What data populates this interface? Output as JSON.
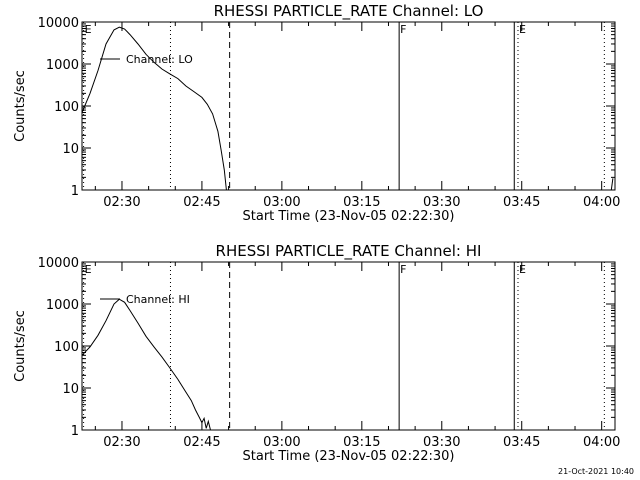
{
  "chart_data": [
    {
      "type": "line",
      "title": "RHESSI PARTICLE_RATE Channel: LO",
      "xlabel": "Start Time (23-Nov-05 02:22:30)",
      "ylabel": "Counts/sec",
      "yscale": "log",
      "ylim": [
        1,
        10000
      ],
      "y_ticks": [
        1,
        10,
        100,
        1000,
        10000
      ],
      "y_tick_labels": [
        "1",
        "10",
        "100",
        "1000",
        "10000"
      ],
      "xlim_minutes": [
        22.5,
        122.5
      ],
      "x_ticks": [
        30,
        45,
        60,
        75,
        90,
        105,
        120
      ],
      "x_tick_labels": [
        "02:30",
        "02:45",
        "03:00",
        "03:15",
        "03:30",
        "03:45",
        "04:00"
      ],
      "grid": false,
      "legend": {
        "label": "Channel: LO",
        "position": "top-left"
      },
      "series": [
        {
          "name": "Channel: LO",
          "points": [
            [
              22.5,
              70
            ],
            [
              24,
              200
            ],
            [
              25.5,
              700
            ],
            [
              27,
              3000
            ],
            [
              28.5,
              6500
            ],
            [
              29.5,
              7500
            ],
            [
              30.5,
              6800
            ],
            [
              31.5,
              5000
            ],
            [
              33,
              3000
            ],
            [
              34.5,
              1700
            ],
            [
              36,
              1100
            ],
            [
              37.5,
              760
            ],
            [
              39,
              580
            ],
            [
              40.5,
              450
            ],
            [
              42,
              300
            ],
            [
              43.5,
              220
            ],
            [
              45,
              160
            ],
            [
              46,
              110
            ],
            [
              47,
              65
            ],
            [
              48,
              25
            ],
            [
              48.6,
              9
            ],
            [
              49.2,
              3
            ],
            [
              49.6,
              1
            ]
          ]
        },
        {
          "name": "",
          "points": [
            [
              121.8,
              1
            ],
            [
              122.1,
              1.9
            ]
          ]
        }
      ],
      "markers": [
        {
          "label": "E",
          "x": 22.8,
          "style": "dotted"
        },
        {
          "label": "",
          "x": 39.1,
          "style": "dotted"
        },
        {
          "label": "",
          "x": 50.2,
          "style": "dashed"
        },
        {
          "label": "F",
          "x": 82.0,
          "style": "solid"
        },
        {
          "label": "",
          "x": 103.6,
          "style": "solid"
        },
        {
          "label": "E",
          "x": 104.3,
          "style": "dotted"
        },
        {
          "label": "",
          "x": 120.5,
          "style": "dotted"
        }
      ]
    },
    {
      "type": "line",
      "title": "RHESSI PARTICLE_RATE Channel: HI",
      "xlabel": "Start Time (23-Nov-05 02:22:30)",
      "ylabel": "Counts/sec",
      "yscale": "log",
      "ylim": [
        1,
        10000
      ],
      "y_ticks": [
        1,
        10,
        100,
        1000,
        10000
      ],
      "y_tick_labels": [
        "1",
        "10",
        "100",
        "1000",
        "10000"
      ],
      "xlim_minutes": [
        22.5,
        122.5
      ],
      "x_ticks": [
        30,
        45,
        60,
        75,
        90,
        105,
        120
      ],
      "x_tick_labels": [
        "02:30",
        "02:45",
        "03:00",
        "03:15",
        "03:30",
        "03:45",
        "04:00"
      ],
      "grid": false,
      "legend": {
        "label": "Channel: HI",
        "position": "top-left"
      },
      "series": [
        {
          "name": "Channel: HI",
          "points": [
            [
              22.5,
              60
            ],
            [
              24,
              95
            ],
            [
              25.5,
              180
            ],
            [
              27,
              400
            ],
            [
              28.5,
              1000
            ],
            [
              29.5,
              1300
            ],
            [
              30.5,
              1100
            ],
            [
              31.5,
              700
            ],
            [
              33,
              350
            ],
            [
              34.5,
              170
            ],
            [
              36,
              95
            ],
            [
              37.5,
              55
            ],
            [
              39,
              30
            ],
            [
              40.5,
              16
            ],
            [
              42,
              8
            ],
            [
              43,
              5
            ],
            [
              43.8,
              3
            ],
            [
              44.5,
              2
            ],
            [
              45,
              1.5
            ],
            [
              45.4,
              1.9
            ],
            [
              45.8,
              1.1
            ],
            [
              46.2,
              1.6
            ],
            [
              46.6,
              1
            ]
          ]
        }
      ],
      "markers": [
        {
          "label": "E",
          "x": 22.8,
          "style": "dotted"
        },
        {
          "label": "",
          "x": 39.1,
          "style": "dotted"
        },
        {
          "label": "",
          "x": 50.2,
          "style": "dashed"
        },
        {
          "label": "F",
          "x": 82.0,
          "style": "solid"
        },
        {
          "label": "",
          "x": 103.6,
          "style": "solid"
        },
        {
          "label": "E",
          "x": 104.3,
          "style": "dotted"
        },
        {
          "label": "",
          "x": 120.5,
          "style": "dotted"
        }
      ]
    }
  ],
  "footer": {
    "timestamp": "21-Oct-2021 10:40"
  }
}
